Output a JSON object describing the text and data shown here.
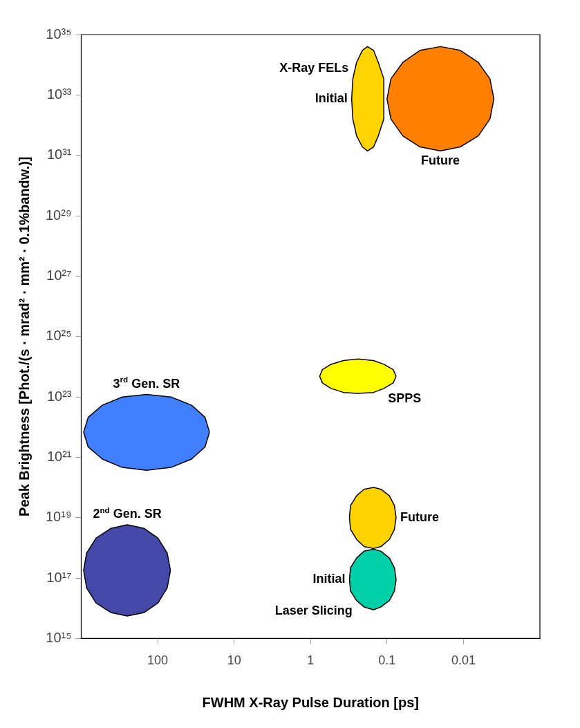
{
  "chart_data": {
    "type": "area",
    "xlabel": "FWHM X-Ray Pulse Duration [ps]",
    "ylabel": "Peak Brightness [Phot./(s · mrad² · mm² · 0.1%bandw.)]",
    "log": "xy",
    "grid": false,
    "legend": false,
    "xlim": [
      1000,
      0.001
    ],
    "xticks": [
      100,
      10,
      1,
      0.1,
      0.01
    ],
    "ylim": [
      1000000000000000.0,
      1e+35
    ],
    "yticks": [
      {
        "value": 1000000000000000.0,
        "label": "10¹⁵"
      },
      {
        "value": 1e+17,
        "label": "10¹⁷"
      },
      {
        "value": 1e+19,
        "label": "10¹⁹"
      },
      {
        "value": 1e+21,
        "label": "10²¹"
      },
      {
        "value": 1e+23,
        "label": "10²³"
      },
      {
        "value": 1e+25,
        "label": "10²⁵"
      },
      {
        "value": 1e+27,
        "label": "10²⁷"
      },
      {
        "value": 1e+29,
        "label": "10²⁹"
      },
      {
        "value": 1e+31,
        "label": "10³¹"
      },
      {
        "value": 1e+33,
        "label": "10³³"
      },
      {
        "value": 1e+35,
        "label": "10³⁵"
      }
    ],
    "series": [
      {
        "color": "#ffd400",
        "x": [
          0.11,
          0.11,
          0.13,
          0.15,
          0.18,
          0.21,
          0.25,
          0.28,
          0.29,
          0.28,
          0.25,
          0.21,
          0.18,
          0.15,
          0.13,
          0.11,
          0.11
        ],
        "values": [
          7.4e+32,
          3.4e+33,
          1.2e+34,
          3e+34,
          4e+34,
          3e+34,
          1.2e+34,
          3.4e+33,
          7.4e+32,
          1.6e+32,
          4.4e+31,
          1.9e+31,
          1.4e+31,
          1.9e+31,
          4.4e+31,
          1.6e+32,
          7.4e+32
        ]
      },
      {
        "color": "#ff7f00",
        "x": [
          0.004,
          0.0045,
          0.0064,
          0.011,
          0.02,
          0.037,
          0.062,
          0.089,
          0.1,
          0.089,
          0.062,
          0.037,
          0.02,
          0.011,
          0.0064,
          0.0045,
          0.004
        ],
        "values": [
          7.4e+32,
          3.4e+33,
          1.2e+34,
          3e+34,
          4e+34,
          3e+34,
          1.2e+34,
          3.4e+33,
          7.4e+32,
          1.6e+32,
          4.4e+31,
          1.9e+31,
          1.4e+31,
          1.9e+31,
          4.4e+31,
          1.6e+32,
          7.4e+32
        ]
      },
      {
        "color": "#ffff00",
        "x": [
          0.076,
          0.083,
          0.11,
          0.15,
          0.24,
          0.37,
          0.54,
          0.7,
          0.76,
          0.7,
          0.54,
          0.37,
          0.24,
          0.15,
          0.11,
          0.083,
          0.076
        ],
        "values": [
          4.8e+23,
          8e+23,
          1.2e+24,
          1.6e+24,
          1.8e+24,
          1.6e+24,
          1.2e+24,
          8e+23,
          4.8e+23,
          2.9e+23,
          1.9e+23,
          1.4e+23,
          1.3e+23,
          1.4e+23,
          1.9e+23,
          2.9e+23,
          4.8e+23
        ]
      },
      {
        "color": "#4080ff",
        "x": [
          21,
          24,
          36,
          67,
          140,
          290,
          530,
          810,
          930,
          810,
          530,
          290,
          140,
          67,
          36,
          24,
          21
        ],
        "values": [
          6.8e+21,
          2.1e+22,
          5.3e+22,
          9.9e+22,
          1.2e+23,
          9.9e+22,
          5.3e+22,
          2.1e+22,
          6.8e+21,
          2.2e+21,
          8.7e+20,
          4.6e+20,
          3.7e+20,
          4.6e+20,
          8.7e+20,
          2.2e+21,
          6.8e+21
        ]
      },
      {
        "color": "#4448a8",
        "x": [
          68,
          75,
          99,
          150,
          250,
          410,
          640,
          850,
          930,
          850,
          640,
          410,
          250,
          150,
          99,
          75,
          68
        ],
        "values": [
          1.8e+17,
          6.7e+17,
          2.1e+18,
          4.4e+18,
          5.8e+18,
          4.4e+18,
          2.1e+18,
          6.7e+17,
          1.8e+17,
          4.7e+16,
          1.5e+16,
          7200000000000000.0,
          5500000000000000.0,
          7200000000000000.0,
          1.5e+16,
          4.7e+16,
          1.8e+17
        ]
      },
      {
        "color": "#ffd200",
        "x": [
          0.076,
          0.08,
          0.093,
          0.12,
          0.15,
          0.2,
          0.25,
          0.3,
          0.31,
          0.3,
          0.25,
          0.2,
          0.15,
          0.12,
          0.093,
          0.08,
          0.076
        ],
        "values": [
          1e+19,
          2.5e+19,
          5.3e+19,
          8.7e+19,
          1e+20,
          8.7e+19,
          5.3e+19,
          2.5e+19,
          1e+19,
          4.1e+18,
          1.9e+18,
          1.1e+18,
          9.5e+17,
          1.1e+18,
          1.9e+18,
          4.1e+18,
          1e+19
        ]
      },
      {
        "color": "#00d0a8",
        "x": [
          0.076,
          0.08,
          0.093,
          0.12,
          0.15,
          0.2,
          0.25,
          0.3,
          0.31,
          0.3,
          0.25,
          0.2,
          0.15,
          0.12,
          0.093,
          0.08,
          0.076
        ],
        "values": [
          9e+16,
          2.2e+17,
          4.6e+17,
          7.7e+17,
          9.1e+17,
          7.7e+17,
          4.6e+17,
          2.2e+17,
          9e+16,
          3.7e+16,
          1.8e+16,
          1.1e+16,
          8900000000000000.0,
          1.1e+16,
          1.8e+16,
          3.7e+16,
          9e+16
        ]
      }
    ],
    "annotations": [
      {
        "text": "X-Ray FELs",
        "x": 0.28,
        "y": 3.4e+33
      },
      {
        "text": "Initial",
        "x": 0.29,
        "y": 7.4e+32
      },
      {
        "text": "Future",
        "x": 0.02,
        "y": 1.4e+31
      },
      {
        "text": "SPPS",
        "x": 0.11,
        "y": 1.9e+23
      },
      {
        "text": "3$^{rd}$ Gen. SR",
        "x": 140,
        "y": 1.2e+23
      },
      {
        "text": "2$^{nd}$ Gen. SR",
        "x": 250,
        "y": 5.8e+18
      },
      {
        "text": "Future",
        "x": 0.076,
        "y": 1e+19
      },
      {
        "text": "Initial",
        "x": 0.31,
        "y": 9e+16
      },
      {
        "text": "Laser Slicing",
        "x": 0.25,
        "y": 1.8e+16
      }
    ]
  }
}
